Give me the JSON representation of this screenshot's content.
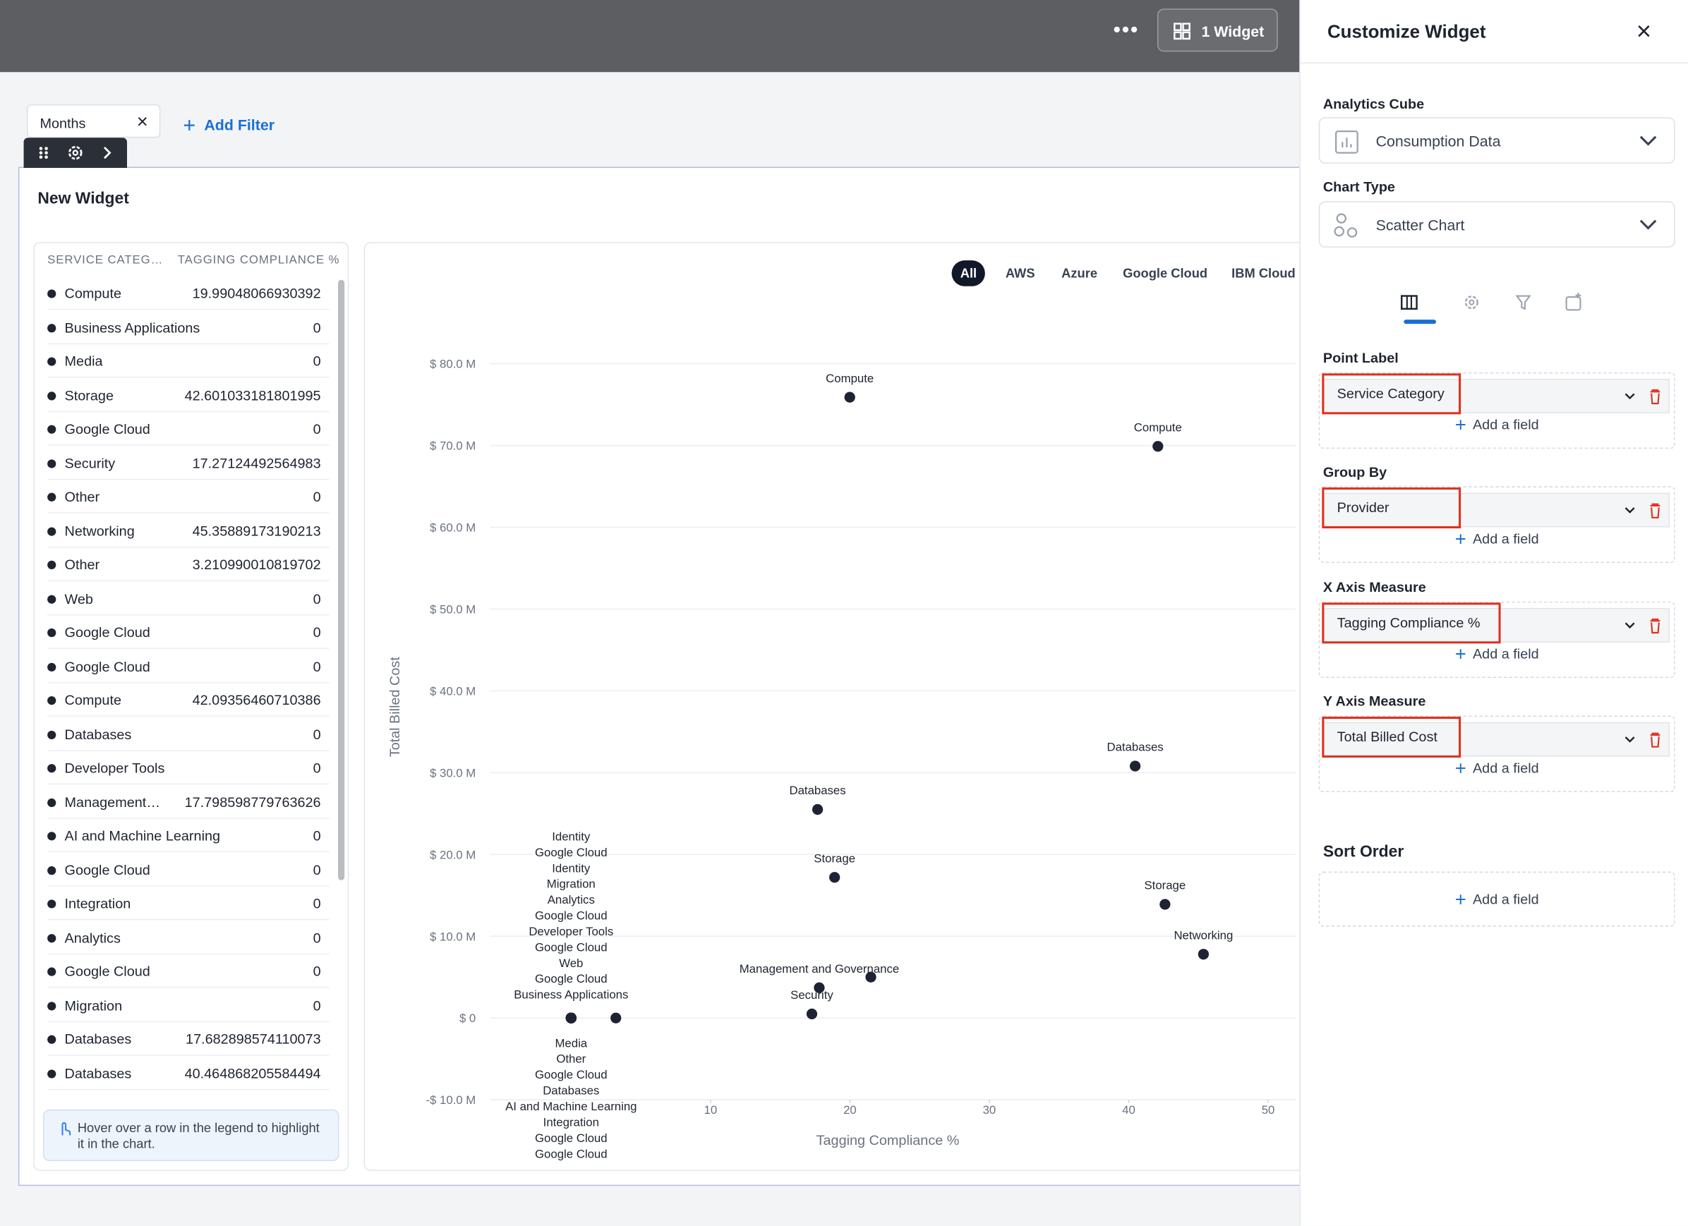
{
  "topbar": {
    "widgets_button": "1 Widget"
  },
  "filters": {
    "chip": "Months",
    "add": "Add Filter"
  },
  "widget": {
    "title": "New Widget",
    "legend": {
      "headers": [
        "SERVICE CATEG…",
        "TAGGING COMPLIANCE %"
      ],
      "rows": [
        [
          "Compute",
          "19.99048066930392"
        ],
        [
          "Business Applications",
          "0"
        ],
        [
          "Media",
          "0"
        ],
        [
          "Storage",
          "42.601033181801995"
        ],
        [
          "Google Cloud",
          "0"
        ],
        [
          "Security",
          "17.27124492564983"
        ],
        [
          "Other",
          "0"
        ],
        [
          "Networking",
          "45.35889173190213"
        ],
        [
          "Other",
          "3.210990010819702"
        ],
        [
          "Web",
          "0"
        ],
        [
          "Google Cloud",
          "0"
        ],
        [
          "Google Cloud",
          "0"
        ],
        [
          "Compute",
          "42.09356460710386"
        ],
        [
          "Databases",
          "0"
        ],
        [
          "Developer Tools",
          "0"
        ],
        [
          "Management…",
          "17.798598779763626"
        ],
        [
          "AI and Machine Learning",
          "0"
        ],
        [
          "Google Cloud",
          "0"
        ],
        [
          "Integration",
          "0"
        ],
        [
          "Analytics",
          "0"
        ],
        [
          "Google Cloud",
          "0"
        ],
        [
          "Migration",
          "0"
        ],
        [
          "Databases",
          "17.682898574110073"
        ],
        [
          "Databases",
          "40.464868205584494"
        ]
      ],
      "hint": "Hover over a row in the legend to highlight it in the chart."
    },
    "provider_tabs": [
      "All",
      "AWS",
      "Azure",
      "Google Cloud",
      "IBM Cloud"
    ]
  },
  "chart_data": {
    "type": "scatter",
    "x_label": "Tagging Compliance %",
    "y_label": "Total Billed Cost",
    "color": "#1e2333",
    "x": [
      19.99,
      42.09,
      40.46,
      17.68,
      18.9,
      42.6,
      45.36,
      17.8,
      21.5,
      17.27,
      3.21,
      0,
      0,
      0,
      0,
      0,
      0,
      0,
      0,
      0,
      0,
      0,
      0,
      0,
      0,
      0,
      0,
      0,
      0,
      0
    ],
    "values": [
      75900000,
      69900000,
      30800000,
      25500000,
      17200000,
      13900000,
      7800000,
      3700000,
      5000000,
      500000,
      0,
      0,
      0,
      0,
      0,
      0,
      0,
      0,
      0,
      0,
      0,
      0,
      0,
      0,
      0,
      0,
      0,
      0,
      0,
      0
    ],
    "point_labels": [
      "Compute",
      "Compute",
      "Databases",
      "Databases",
      "Storage",
      "Storage",
      "Networking",
      "Management and Governance",
      null,
      "Security",
      null,
      "Identity",
      "Google Cloud",
      "Identity",
      "Migration",
      "Analytics",
      "Google Cloud",
      "Developer Tools",
      "Google Cloud",
      "Web",
      "Google Cloud",
      "Business Applications",
      "Media",
      "Other",
      "Google Cloud",
      "Databases",
      "AI and Machine Learning",
      "Integration",
      "Google Cloud",
      "Google Cloud"
    ],
    "xlim": [
      -5.8,
      52
    ],
    "ylim": [
      -10000000,
      85000000
    ],
    "xticks": [
      10,
      20,
      30,
      40,
      50
    ],
    "yticks": [
      {
        "value": -10000000,
        "label": "-$ 10.0 M"
      },
      {
        "value": 0,
        "label": "$ 0"
      },
      {
        "value": 10000000,
        "label": "$ 10.0 M"
      },
      {
        "value": 20000000,
        "label": "$ 20.0 M"
      },
      {
        "value": 30000000,
        "label": "$ 30.0 M"
      },
      {
        "value": 40000000,
        "label": "$ 40.0 M"
      },
      {
        "value": 50000000,
        "label": "$ 50.0 M"
      },
      {
        "value": 60000000,
        "label": "$ 60.0 M"
      },
      {
        "value": 70000000,
        "label": "$ 70.0 M"
      },
      {
        "value": 80000000,
        "label": "$ 80.0 M"
      }
    ],
    "grid": true
  },
  "panel": {
    "title": "Customize Widget",
    "cube_label": "Analytics Cube",
    "cube": "Consumption Data",
    "type_label": "Chart Type",
    "chart_type": "Scatter Chart",
    "fields": [
      {
        "label": "Point Label",
        "value": "Service Category"
      },
      {
        "label": "Group By",
        "value": "Provider"
      },
      {
        "label": "X Axis Measure",
        "value": "Tagging Compliance %"
      },
      {
        "label": "Y Axis Measure",
        "value": "Total Billed Cost"
      }
    ],
    "add_field": "Add a field",
    "sort_label": "Sort Order"
  }
}
